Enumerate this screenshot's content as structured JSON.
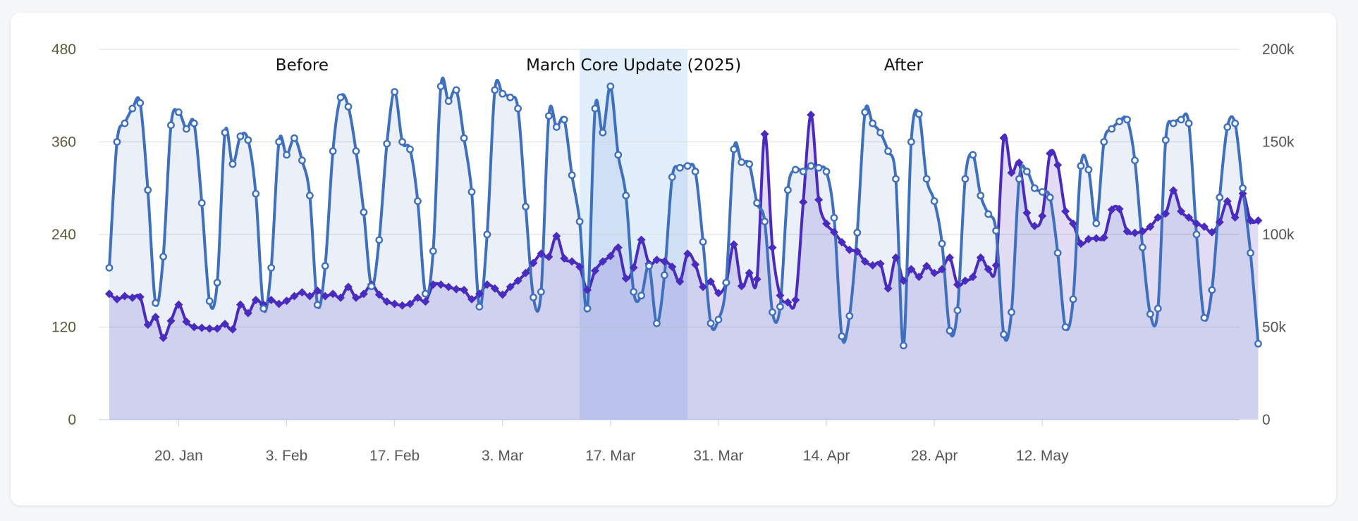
{
  "chart_data": {
    "type": "line",
    "title": "",
    "x_start": "2025-01-11",
    "x_ticks": [
      "20. Jan",
      "3. Feb",
      "17. Feb",
      "3. Mar",
      "17. Mar",
      "31. Mar",
      "14. Apr",
      "28. Apr",
      "12. May"
    ],
    "y_left": {
      "min": 0,
      "max": 480,
      "ticks": [
        "0",
        "120",
        "240",
        "360",
        "480"
      ]
    },
    "y_right": {
      "min": 0,
      "max": 200000,
      "ticks": [
        "0",
        "50k",
        "100k",
        "150k",
        "200k"
      ]
    },
    "grid": true,
    "legend": "none",
    "plot_bands": [
      {
        "from": "2025-03-13",
        "to": "2025-03-27",
        "label": "March Core Update (2025)",
        "color": "#bcd9f6"
      }
    ],
    "annotations": [
      {
        "text": "Before",
        "date": "2025-02-05"
      },
      {
        "text": "March Core Update (2025)",
        "date": "2025-03-20"
      },
      {
        "text": "After",
        "date": "2025-04-24"
      }
    ],
    "series": [
      {
        "axis": "left",
        "color": "#4a2bbf",
        "marker": "diamond",
        "values": [
          163,
          156,
          160,
          158,
          159,
          123,
          133,
          106,
          128,
          149,
          127,
          120,
          119,
          118,
          118,
          124,
          117,
          149,
          138,
          155,
          149,
          155,
          150,
          154,
          160,
          165,
          160,
          167,
          160,
          163,
          158,
          172,
          158,
          163,
          175,
          162,
          153,
          150,
          148,
          150,
          158,
          153,
          175,
          175,
          172,
          169,
          168,
          156,
          163,
          175,
          170,
          162,
          172,
          180,
          190,
          203,
          215,
          211,
          238,
          209,
          205,
          198,
          168,
          193,
          205,
          212,
          223,
          183,
          197,
          233,
          202,
          207,
          205,
          198,
          179,
          215,
          201,
          172,
          179,
          164,
          177,
          227,
          173,
          190,
          182,
          370,
          223,
          161,
          152,
          155,
          282,
          395,
          285,
          254,
          243,
          230,
          220,
          218,
          205,
          200,
          202,
          170,
          210,
          180,
          195,
          185,
          199,
          190,
          195,
          210,
          175,
          180,
          185,
          210,
          195,
          200,
          365,
          320,
          333,
          268,
          251,
          264,
          345,
          330,
          270,
          254,
          228,
          234,
          235,
          236,
          272,
          273,
          244,
          242,
          244,
          250,
          262,
          267,
          297,
          270,
          262,
          254,
          250,
          243,
          256,
          283,
          262,
          293,
          258,
          258
        ]
      },
      {
        "axis": "right",
        "color": "#3f6fbf",
        "marker": "circle",
        "values": [
          82000,
          150000,
          160000,
          168000,
          171000,
          124000,
          63000,
          88000,
          159000,
          166000,
          157000,
          160000,
          117000,
          64000,
          74000,
          155000,
          138000,
          153000,
          151000,
          122000,
          60000,
          82000,
          150000,
          143000,
          152000,
          140000,
          121000,
          62000,
          83000,
          145000,
          174000,
          169000,
          145000,
          112000,
          72000,
          97000,
          149000,
          177000,
          150000,
          146000,
          118000,
          68000,
          91000,
          180000,
          172000,
          178000,
          152000,
          123000,
          61000,
          100000,
          178000,
          176000,
          174000,
          168000,
          115000,
          66000,
          69000,
          164000,
          158000,
          162000,
          132000,
          107000,
          60000,
          168000,
          155000,
          180000,
          143000,
          121000,
          69000,
          67000,
          83000,
          52000,
          78000,
          131000,
          136000,
          137000,
          134000,
          96000,
          52000,
          54000,
          74000,
          146000,
          139000,
          138000,
          117000,
          107000,
          58000,
          61000,
          124000,
          135000,
          134000,
          137000,
          136000,
          134000,
          109000,
          45000,
          56000,
          101000,
          166000,
          160000,
          155000,
          145000,
          130000,
          40000,
          150000,
          165000,
          130000,
          118000,
          95000,
          48000,
          59000,
          130000,
          143000,
          121000,
          111000,
          102000,
          46000,
          58000,
          130000,
          134000,
          125000,
          123000,
          120000,
          90000,
          50000,
          65000,
          137000,
          135000,
          106000,
          150000,
          157000,
          161000,
          162000,
          140000,
          93000,
          57000,
          60000,
          151000,
          160000,
          162000,
          160000,
          100000,
          55000,
          70000,
          120000,
          158000,
          160000,
          125000,
          90000,
          41000
        ]
      }
    ]
  }
}
